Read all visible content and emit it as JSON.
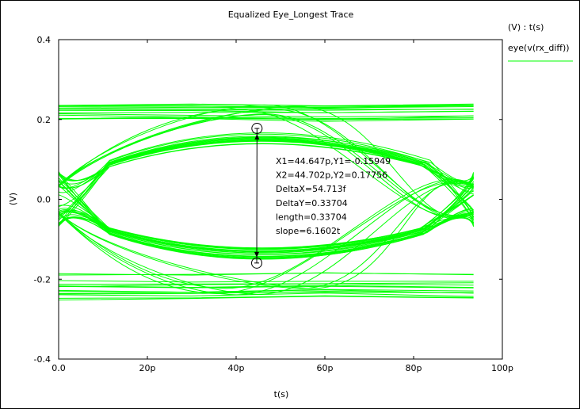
{
  "chart_data": {
    "type": "line",
    "title": "Equalized Eye_Longest Trace",
    "xlabel": "t(s)",
    "ylabel": "(V)",
    "xlim": [
      0,
      100
    ],
    "ylim": [
      -0.4,
      0.4
    ],
    "x_unit": "p",
    "x_ticks": [
      0,
      20,
      40,
      60,
      80,
      100
    ],
    "x_tick_labels": [
      "0.0",
      "20p",
      "40p",
      "60p",
      "80p",
      "100p"
    ],
    "y_ticks": [
      -0.4,
      -0.2,
      0.0,
      0.2,
      0.4
    ],
    "y_tick_labels": [
      "-0.4",
      "-0.2",
      "0.0",
      "0.2",
      "0.4"
    ],
    "grid": false,
    "legend": {
      "header": "(V) : t(s)",
      "entries": [
        {
          "label": "eye(v(rx_diff))",
          "color": "#00ff00"
        }
      ]
    },
    "series": [
      {
        "name": "eye(v(rx_diff))",
        "color": "#00ff00",
        "ui_end": 93.5,
        "crossing_time": 3.5,
        "crossing_time_end": 92.5,
        "eye_center_time": 44.7,
        "high_rail_range": [
          0.195,
          0.26
        ],
        "low_rail_range": [
          -0.25,
          -0.185
        ],
        "eye_top_peak": 0.178,
        "eye_bottom_peak": -0.159,
        "trace_count": 38
      }
    ],
    "markers": [
      {
        "x": 44.647,
        "y": -0.15949
      },
      {
        "x": 44.702,
        "y": 0.17756
      }
    ],
    "annotations": [
      "X1=44.647p,Y1=-0.15949",
      "X2=44.702p,Y2=0.17756",
      "DeltaX=54.713f",
      "DeltaY=0.33704",
      "length=0.33704",
      "slope=6.1602t"
    ]
  },
  "colors": {
    "trace": "#00ff00",
    "axis": "#000000",
    "background": "#ffffff"
  }
}
